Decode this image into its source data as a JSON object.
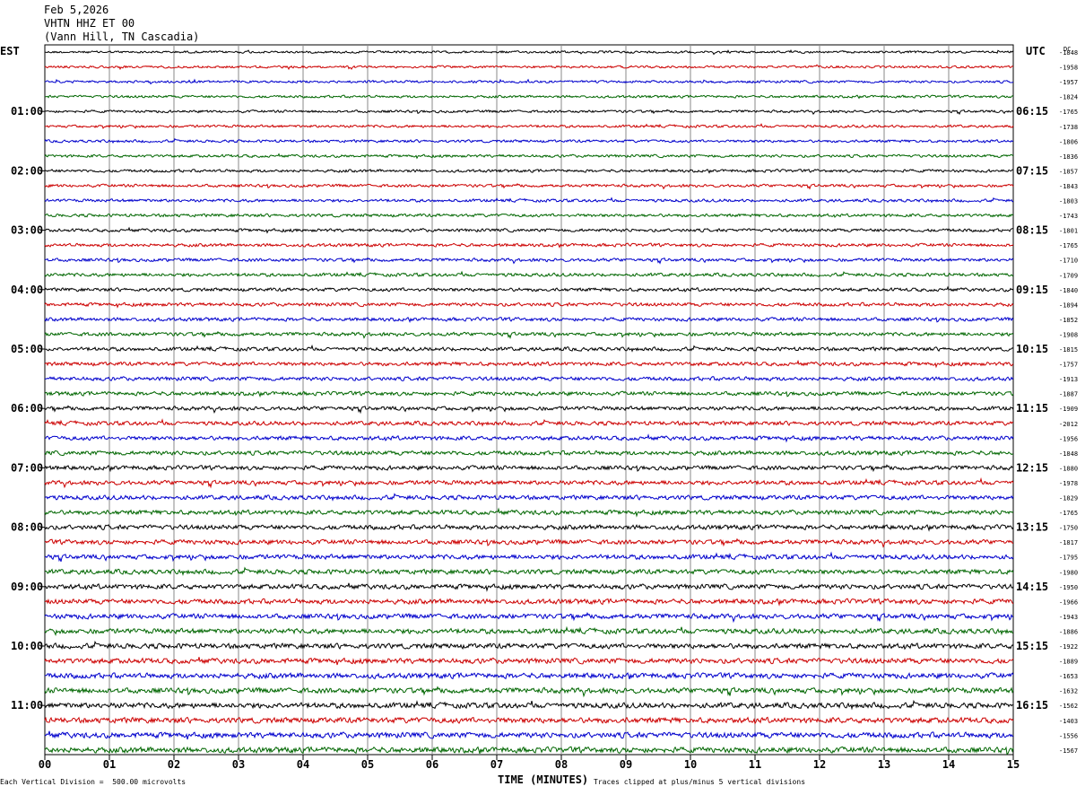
{
  "header": {
    "date": "Feb 5,2026",
    "station": "VHTN HHZ ET 00",
    "location": "(Vann Hill, TN Cascadia)"
  },
  "left_tz": "EST",
  "right_tz": "UTC",
  "dc_label": "DC",
  "footer": {
    "scale_note": "Each Vertical Division =  500.00 microvolts",
    "clip_note": "Traces clipped at plus/minus 5 vertical divisions"
  },
  "colors": {
    "trace_cycle": [
      "#000000",
      "#cc0000",
      "#0000cc",
      "#006600"
    ],
    "grid": "#888888"
  },
  "chart_data": {
    "type": "line",
    "xlabel": "TIME (MINUTES)",
    "x_ticks": [
      "00",
      "01",
      "02",
      "03",
      "04",
      "05",
      "06",
      "07",
      "08",
      "09",
      "10",
      "11",
      "12",
      "13",
      "14",
      "15"
    ],
    "left_hour_labels": [
      "01:00",
      "02:00",
      "03:00",
      "04:00",
      "05:00",
      "06:00",
      "07:00",
      "08:00",
      "09:00",
      "10:00",
      "11:00"
    ],
    "right_hour_labels": [
      "06:15",
      "07:15",
      "08:15",
      "09:15",
      "10:15",
      "11:15",
      "12:15",
      "13:15",
      "14:15",
      "15:15",
      "16:15"
    ],
    "dc_offsets": [
      "-1848",
      "-1958",
      "-1957",
      "-1824",
      "-1765",
      "-1738",
      "-1806",
      "-1836",
      "-1857",
      "-1843",
      "-1803",
      "-1743",
      "-1801",
      "-1765",
      "-1710",
      "-1709",
      "-1840",
      "-1894",
      "-1852",
      "-1908",
      "-1815",
      "-1757",
      "-1913",
      "-1887",
      "-1909",
      "-2012",
      "-1956",
      "-1848",
      "-1880",
      "-1978",
      "-1829",
      "-1765",
      "-1750",
      "-1817",
      "-1795",
      "-1980",
      "-1950",
      "-1966",
      "-1943",
      "-1886",
      "-1922",
      "-1889",
      "-1653",
      "-1632",
      "-1562",
      "-1403",
      "-1556",
      "-1567"
    ]
  }
}
